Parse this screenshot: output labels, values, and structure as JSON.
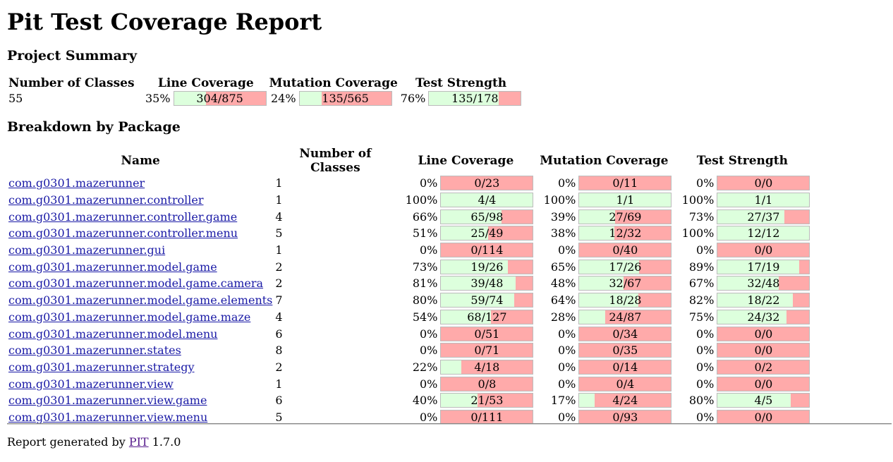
{
  "title": "Pit Test Coverage Report",
  "project_summary": {
    "heading": "Project Summary",
    "headers": [
      "Number of Classes",
      "Line Coverage",
      "Mutation Coverage",
      "Test Strength"
    ],
    "classes": "55",
    "line": {
      "pct": "35%",
      "label": "304/875",
      "fraction": 0.347
    },
    "mutation": {
      "pct": "24%",
      "label": "135/565",
      "fraction": 0.239
    },
    "strength": {
      "pct": "76%",
      "label": "135/178",
      "fraction": 0.758
    }
  },
  "breakdown": {
    "heading": "Breakdown by Package",
    "headers": [
      "Name",
      "Number of Classes",
      "Line Coverage",
      "Mutation Coverage",
      "Test Strength"
    ],
    "rows": [
      {
        "name": "com.g0301.mazerunner",
        "classes": "1",
        "line_pct": "0%",
        "line": "0/23",
        "line_f": 0,
        "mut_pct": "0%",
        "mut": "0/11",
        "mut_f": 0,
        "str_pct": "0%",
        "str": "0/0",
        "str_f": 0
      },
      {
        "name": "com.g0301.mazerunner.controller",
        "classes": "1",
        "line_pct": "100%",
        "line": "4/4",
        "line_f": 1,
        "mut_pct": "100%",
        "mut": "1/1",
        "mut_f": 1,
        "str_pct": "100%",
        "str": "1/1",
        "str_f": 1
      },
      {
        "name": "com.g0301.mazerunner.controller.game",
        "classes": "4",
        "line_pct": "66%",
        "line": "65/98",
        "line_f": 0.66,
        "mut_pct": "39%",
        "mut": "27/69",
        "mut_f": 0.39,
        "str_pct": "73%",
        "str": "27/37",
        "str_f": 0.73
      },
      {
        "name": "com.g0301.mazerunner.controller.menu",
        "classes": "5",
        "line_pct": "51%",
        "line": "25/49",
        "line_f": 0.51,
        "mut_pct": "38%",
        "mut": "12/32",
        "mut_f": 0.38,
        "str_pct": "100%",
        "str": "12/12",
        "str_f": 1
      },
      {
        "name": "com.g0301.mazerunner.gui",
        "classes": "1",
        "line_pct": "0%",
        "line": "0/114",
        "line_f": 0,
        "mut_pct": "0%",
        "mut": "0/40",
        "mut_f": 0,
        "str_pct": "0%",
        "str": "0/0",
        "str_f": 0
      },
      {
        "name": "com.g0301.mazerunner.model.game",
        "classes": "2",
        "line_pct": "73%",
        "line": "19/26",
        "line_f": 0.73,
        "mut_pct": "65%",
        "mut": "17/26",
        "mut_f": 0.65,
        "str_pct": "89%",
        "str": "17/19",
        "str_f": 0.89
      },
      {
        "name": "com.g0301.mazerunner.model.game.camera",
        "classes": "2",
        "line_pct": "81%",
        "line": "39/48",
        "line_f": 0.81,
        "mut_pct": "48%",
        "mut": "32/67",
        "mut_f": 0.48,
        "str_pct": "67%",
        "str": "32/48",
        "str_f": 0.67
      },
      {
        "name": "com.g0301.mazerunner.model.game.elements",
        "classes": "7",
        "line_pct": "80%",
        "line": "59/74",
        "line_f": 0.8,
        "mut_pct": "64%",
        "mut": "18/28",
        "mut_f": 0.64,
        "str_pct": "82%",
        "str": "18/22",
        "str_f": 0.82
      },
      {
        "name": "com.g0301.mazerunner.model.game.maze",
        "classes": "4",
        "line_pct": "54%",
        "line": "68/127",
        "line_f": 0.54,
        "mut_pct": "28%",
        "mut": "24/87",
        "mut_f": 0.28,
        "str_pct": "75%",
        "str": "24/32",
        "str_f": 0.75
      },
      {
        "name": "com.g0301.mazerunner.model.menu",
        "classes": "6",
        "line_pct": "0%",
        "line": "0/51",
        "line_f": 0,
        "mut_pct": "0%",
        "mut": "0/34",
        "mut_f": 0,
        "str_pct": "0%",
        "str": "0/0",
        "str_f": 0
      },
      {
        "name": "com.g0301.mazerunner.states",
        "classes": "8",
        "line_pct": "0%",
        "line": "0/71",
        "line_f": 0,
        "mut_pct": "0%",
        "mut": "0/35",
        "mut_f": 0,
        "str_pct": "0%",
        "str": "0/0",
        "str_f": 0
      },
      {
        "name": "com.g0301.mazerunner.strategy",
        "classes": "2",
        "line_pct": "22%",
        "line": "4/18",
        "line_f": 0.22,
        "mut_pct": "0%",
        "mut": "0/14",
        "mut_f": 0,
        "str_pct": "0%",
        "str": "0/2",
        "str_f": 0
      },
      {
        "name": "com.g0301.mazerunner.view",
        "classes": "1",
        "line_pct": "0%",
        "line": "0/8",
        "line_f": 0,
        "mut_pct": "0%",
        "mut": "0/4",
        "mut_f": 0,
        "str_pct": "0%",
        "str": "0/0",
        "str_f": 0
      },
      {
        "name": "com.g0301.mazerunner.view.game",
        "classes": "6",
        "line_pct": "40%",
        "line": "21/53",
        "line_f": 0.4,
        "mut_pct": "17%",
        "mut": "4/24",
        "mut_f": 0.17,
        "str_pct": "80%",
        "str": "4/5",
        "str_f": 0.8
      },
      {
        "name": "com.g0301.mazerunner.view.menu",
        "classes": "5",
        "line_pct": "0%",
        "line": "0/111",
        "line_f": 0,
        "mut_pct": "0%",
        "mut": "0/93",
        "mut_f": 0,
        "str_pct": "0%",
        "str": "0/0",
        "str_f": 0
      }
    ]
  },
  "footer": {
    "prefix": "Report generated by",
    "link": "PIT",
    "version": "1.7.0"
  },
  "colors": {
    "covered": "#ddffdd",
    "uncovered": "#ffaaaa"
  }
}
